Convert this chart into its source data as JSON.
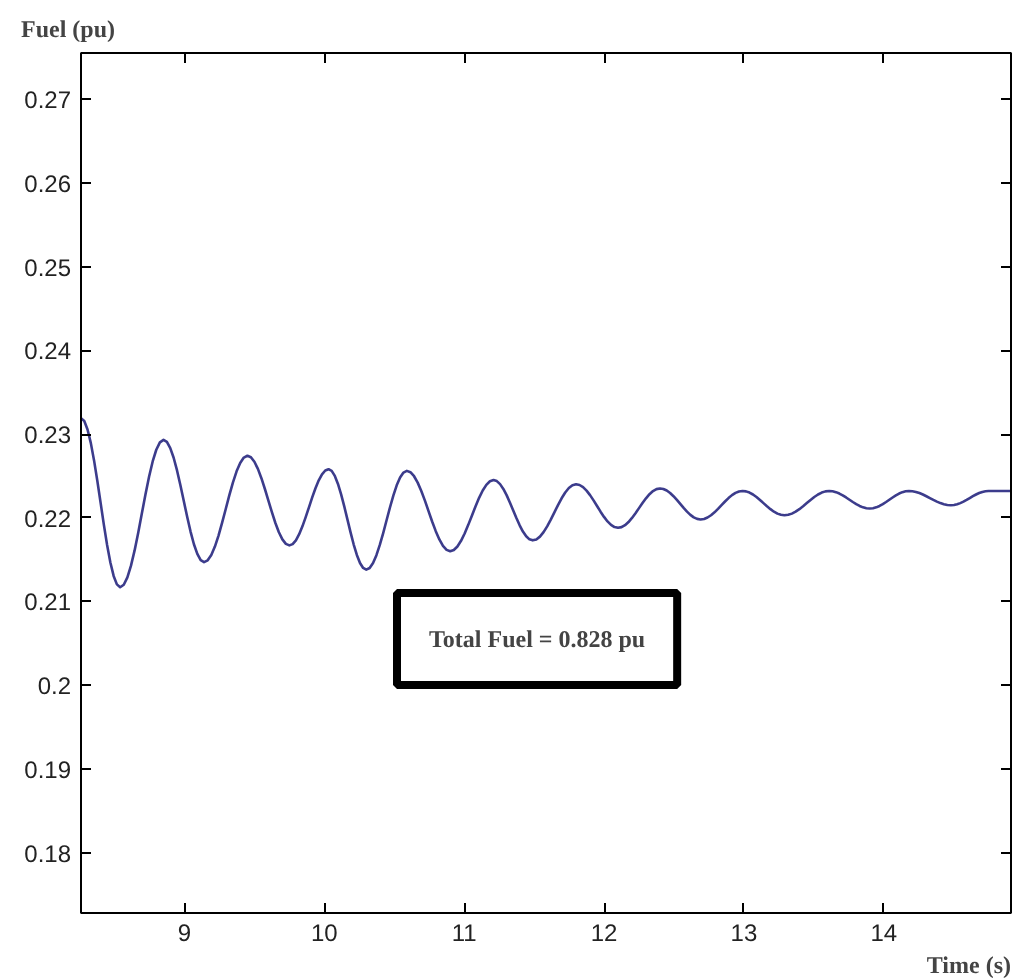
{
  "chart_data": {
    "type": "line",
    "xlabel": "Time (s)",
    "ylabel": "Fuel (pu)",
    "annotations": [
      "Total Fuel = 0.828 pu"
    ],
    "x": [
      8.26,
      8.54,
      8.85,
      9.14,
      9.45,
      9.75,
      10.03,
      10.3,
      10.59,
      10.9,
      11.21,
      11.49,
      11.8,
      12.1,
      12.4,
      12.69,
      12.99,
      13.29,
      13.61,
      13.9,
      14.18,
      14.48,
      14.75,
      14.91
    ],
    "series": [
      {
        "color": "#3c3c8c",
        "values": [
          0.2319,
          0.2117,
          0.2293,
          0.2147,
          0.2274,
          0.2167,
          0.2258,
          0.2138,
          0.2256,
          0.216,
          0.2245,
          0.2173,
          0.224,
          0.2188,
          0.2235,
          0.2198,
          0.2232,
          0.2203,
          0.2232,
          0.2211,
          0.2232,
          0.2215,
          0.2232,
          0.2232
        ]
      }
    ],
    "xlim": [
      8.26,
      14.91
    ],
    "ylim": [
      0.1728,
      0.2755
    ],
    "xticks": [
      9,
      10,
      11,
      12,
      13,
      14
    ],
    "yticks": [
      0.18,
      0.19,
      0.2,
      0.21,
      0.22,
      0.23,
      0.24,
      0.25,
      0.26,
      0.27
    ],
    "grid": false,
    "marker": "none",
    "line_style": "solid"
  }
}
